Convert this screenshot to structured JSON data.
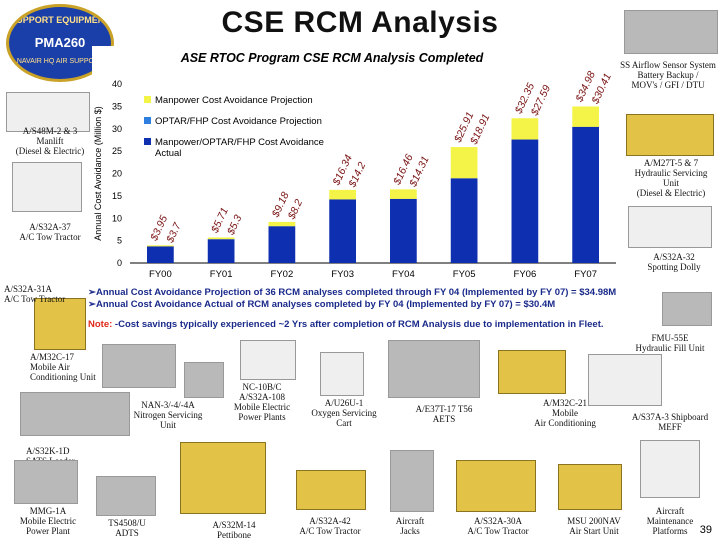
{
  "page": {
    "title": "CSE RCM Analysis",
    "page_number": "39",
    "logo": {
      "line1": "SUPPORT EQUIPMENT",
      "line2": "PMA260",
      "line3": "NAVAIR HQ AIR SUPPORT"
    }
  },
  "chart_data": {
    "type": "bar",
    "title": "ASE RTOC Program CSE RCM Analysis Completed",
    "ylabel": "Annual Cost Avoidance (Million $)",
    "xlabel": "",
    "categories": [
      "FY00",
      "FY01",
      "FY02",
      "FY03",
      "FY04",
      "FY05",
      "FY06",
      "FY07"
    ],
    "ylim": [
      0,
      40
    ],
    "yticks": [
      0,
      5,
      10,
      15,
      20,
      25,
      30,
      35,
      40
    ],
    "series": [
      {
        "name": "Manpower Cost Avoidance Projection",
        "color": "#f4f448",
        "values": [
          3.95,
          5.71,
          9.18,
          16.34,
          16.46,
          25.91,
          32.35,
          34.98
        ]
      },
      {
        "name": "OPTAR/FHP Cost Avoidance Projection",
        "color": "#2f7fe0",
        "values": [
          null,
          null,
          null,
          null,
          null,
          null,
          null,
          null
        ]
      },
      {
        "name": "Manpower/OPTAR/FHP Cost Avoidance Actual",
        "color": "#0d2fb0",
        "values": [
          3.7,
          5.3,
          8.2,
          14.2,
          14.31,
          18.91,
          27.59,
          30.41
        ]
      }
    ],
    "data_labels": {
      "projection": [
        "$3.95",
        "$5.71",
        "$9.18",
        "$16.34",
        "$16.46",
        "$25.91",
        "$32.35",
        "$34.98"
      ],
      "actual": [
        "$3.7",
        "$5.3",
        "$8.2",
        "$14.2",
        "$14.31",
        "$18.91",
        "$27.59",
        "$30.41"
      ]
    },
    "grid": false,
    "legend_position": "top-left"
  },
  "notes": {
    "bullet1": "➢Annual Cost Avoidance Projection of  36 RCM analyses completed through FY 04 (Implemented by FY 07) = $34.98M",
    "bullet2": "➢Annual Cost Avoidance Actual of RCM analyses completed by FY 04 (Implemented by FY 07) = $30.4M",
    "note_label": "Note:",
    "note_text": " -Cost savings typically experienced ~2 Yrs after completion of RCM Analysis due to implementation in Fleet."
  },
  "equipment": {
    "a_s48m": "A/S48M-2 & 3\nManlift\n(Diesel & Electric)",
    "a_s32a37": "A/S32A-37\nA/C Tow Tractor",
    "a_s32a31a": "A/S32A-31A\nA/C Tow Tractor",
    "a_m32c17": "A/M32C-17\nMobile Air\nConditioning Unit",
    "nan3": "NAN-3/-4/-4A\nNitrogen Servicing\nUnit",
    "nc10": "NC-10B/C\nA/S32A-108\nMobile Electric\nPower Plants",
    "a_u26u": "A/U26U-1\nOxygen Servicing\nCart",
    "a_e37t": "A/E37T-17 T56\nAETS",
    "a_m32c21": "A/M32C-21\nMobile\nAir Conditioning",
    "a_s37a3": "A/S37A-3 Shipboard\nMEFF",
    "fmu55e": "FMU-55E\nHydraulic Fill Unit",
    "a_s32a32": "A/S32A-32\nSpotting Dolly",
    "a_m27t": "A/M27T-5 & 7\nHydraulic Servicing\nUnit\n(Diesel & Electric)",
    "ss_airflow": "SS Airflow Sensor System\nBattery Backup /\nMOV's / GFI / DTU",
    "a_s32k1d": "A/S32K-1D\nSATS Loader",
    "mmg1a": "MMG-1A\nMobile Electric\nPower Plant",
    "ts4508": "TS4508/U\nADTS",
    "a_s32m14": "A/S32M-14\nPettibone",
    "a_s32a42": "A/S32A-42\nA/C Tow Tractor",
    "aircraft_jacks": "Aircraft\nJacks",
    "a_s32a30a": "A/S32A-30A\nA/C Tow Tractor",
    "msu200": "MSU 200NAV\nAir Start Unit",
    "platforms": "Aircraft\nMaintenance\nPlatforms"
  }
}
